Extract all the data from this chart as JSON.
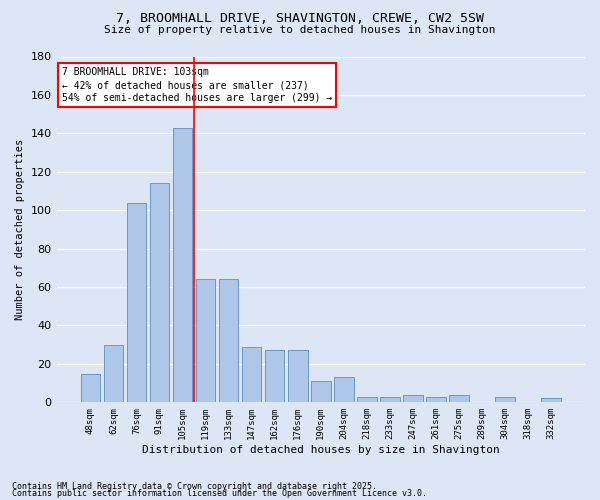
{
  "title_line1": "7, BROOMHALL DRIVE, SHAVINGTON, CREWE, CW2 5SW",
  "title_line2": "Size of property relative to detached houses in Shavington",
  "xlabel": "Distribution of detached houses by size in Shavington",
  "ylabel": "Number of detached properties",
  "categories": [
    "48sqm",
    "62sqm",
    "76sqm",
    "91sqm",
    "105sqm",
    "119sqm",
    "133sqm",
    "147sqm",
    "162sqm",
    "176sqm",
    "190sqm",
    "204sqm",
    "218sqm",
    "233sqm",
    "247sqm",
    "261sqm",
    "275sqm",
    "289sqm",
    "304sqm",
    "318sqm",
    "332sqm"
  ],
  "values": [
    15,
    30,
    104,
    114,
    143,
    64,
    64,
    29,
    27,
    27,
    11,
    13,
    3,
    3,
    4,
    3,
    4,
    0,
    3,
    0,
    2
  ],
  "bar_color": "#aec6e8",
  "bar_edge_color": "#5a8fc2",
  "background_color": "#dce6f5",
  "grid_color": "#ffffff",
  "vline_x": 4.5,
  "vline_color": "red",
  "annotation_text": "7 BROOMHALL DRIVE: 103sqm\n← 42% of detached houses are smaller (237)\n54% of semi-detached houses are larger (299) →",
  "annotation_box_color": "white",
  "annotation_box_edge": "red",
  "ylim": [
    0,
    180
  ],
  "yticks": [
    0,
    20,
    40,
    60,
    80,
    100,
    120,
    140,
    160,
    180
  ],
  "footer_line1": "Contains HM Land Registry data © Crown copyright and database right 2025.",
  "footer_line2": "Contains public sector information licensed under the Open Government Licence v3.0."
}
